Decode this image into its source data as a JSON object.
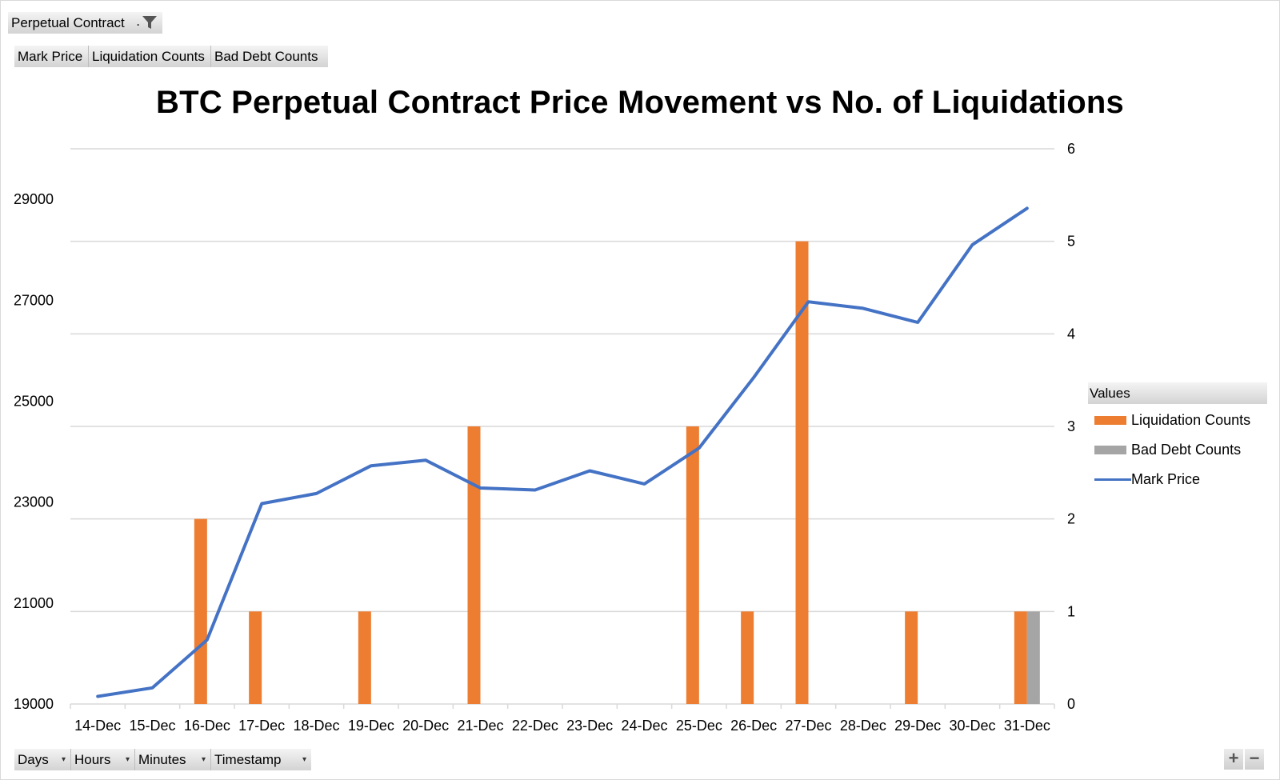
{
  "filter_button": {
    "label": "Perpetual Contract",
    "dot": "."
  },
  "value_fields": [
    "Mark Price",
    "Liquidation Counts",
    "Bad Debt Counts"
  ],
  "axis_fields": [
    "Days",
    "Hours",
    "Minutes",
    "Timestamp"
  ],
  "legend": {
    "header": "Values",
    "items": [
      "Liquidation Counts",
      "Bad Debt Counts",
      "Mark Price"
    ]
  },
  "zoom": {
    "plus": "+",
    "minus": "−"
  },
  "colors": {
    "liquidation": "#ed7d31",
    "bad_debt": "#a5a5a5",
    "mark_price": "#4472c4",
    "grid": "#d9d9d9"
  },
  "chart_data": {
    "type": "combo-bar-line",
    "title": "BTC Perpetual Contract Price Movement vs No. of Liquidations",
    "categories": [
      "14-Dec",
      "15-Dec",
      "16-Dec",
      "17-Dec",
      "18-Dec",
      "19-Dec",
      "20-Dec",
      "21-Dec",
      "22-Dec",
      "23-Dec",
      "24-Dec",
      "25-Dec",
      "26-Dec",
      "27-Dec",
      "28-Dec",
      "29-Dec",
      "30-Dec",
      "31-Dec"
    ],
    "series": [
      {
        "name": "Liquidation Counts",
        "type": "bar",
        "axis": "secondary",
        "values": [
          0,
          0,
          2,
          1,
          0,
          1,
          0,
          3,
          0,
          0,
          0,
          3,
          1,
          5,
          0,
          1,
          0,
          1
        ]
      },
      {
        "name": "Bad Debt Counts",
        "type": "bar",
        "axis": "secondary",
        "values": [
          0,
          0,
          0,
          0,
          0,
          0,
          0,
          0,
          0,
          0,
          0,
          0,
          0,
          0,
          0,
          0,
          0,
          1
        ]
      },
      {
        "name": "Mark Price",
        "type": "line",
        "axis": "primary",
        "values": [
          19150,
          19320,
          20270,
          22970,
          23170,
          23720,
          23830,
          23280,
          23240,
          23620,
          23360,
          24070,
          25470,
          26970,
          26840,
          26560,
          28100,
          28820
        ]
      }
    ],
    "y_primary": {
      "ticks": [
        "19000",
        "21000",
        "23000",
        "25000",
        "27000",
        "29000"
      ],
      "range": [
        19000,
        30000
      ]
    },
    "y_secondary": {
      "ticks": [
        "0",
        "1",
        "2",
        "3",
        "4",
        "5",
        "6"
      ],
      "range": [
        0,
        6
      ]
    },
    "grid": true,
    "legend_position": "right"
  }
}
